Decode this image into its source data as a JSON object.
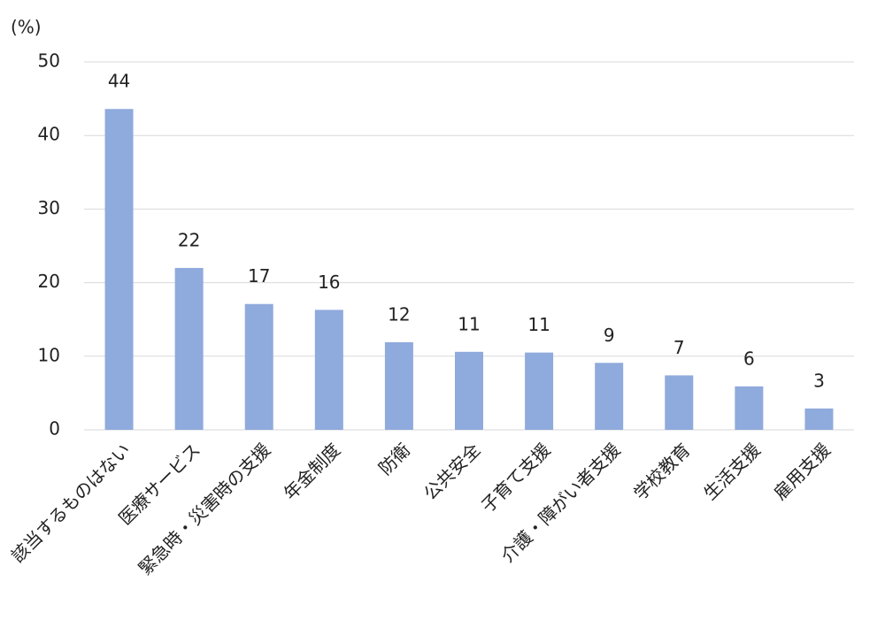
{
  "chart_data": {
    "type": "bar",
    "y_label": "(%)",
    "categories": [
      "該当するものはない",
      "医療サービス",
      "緊急時・災害時の支援",
      "年金制度",
      "防衛",
      "公共安全",
      "子育て支援",
      "介護・障がい者支援",
      "学校教育",
      "生活支援",
      "雇用支援"
    ],
    "values": [
      43.6,
      22,
      17.1,
      16.3,
      11.9,
      10.6,
      10.5,
      9.1,
      7.4,
      5.9,
      2.9
    ],
    "value_labels": [
      "44",
      "22",
      "17",
      "16",
      "12",
      "11",
      "11",
      "9",
      "7",
      "6",
      "3"
    ],
    "color": "#8faadc",
    "ylim": [
      0,
      50
    ],
    "yticks": [
      0,
      10,
      20,
      30,
      40,
      50
    ],
    "grid": true
  }
}
